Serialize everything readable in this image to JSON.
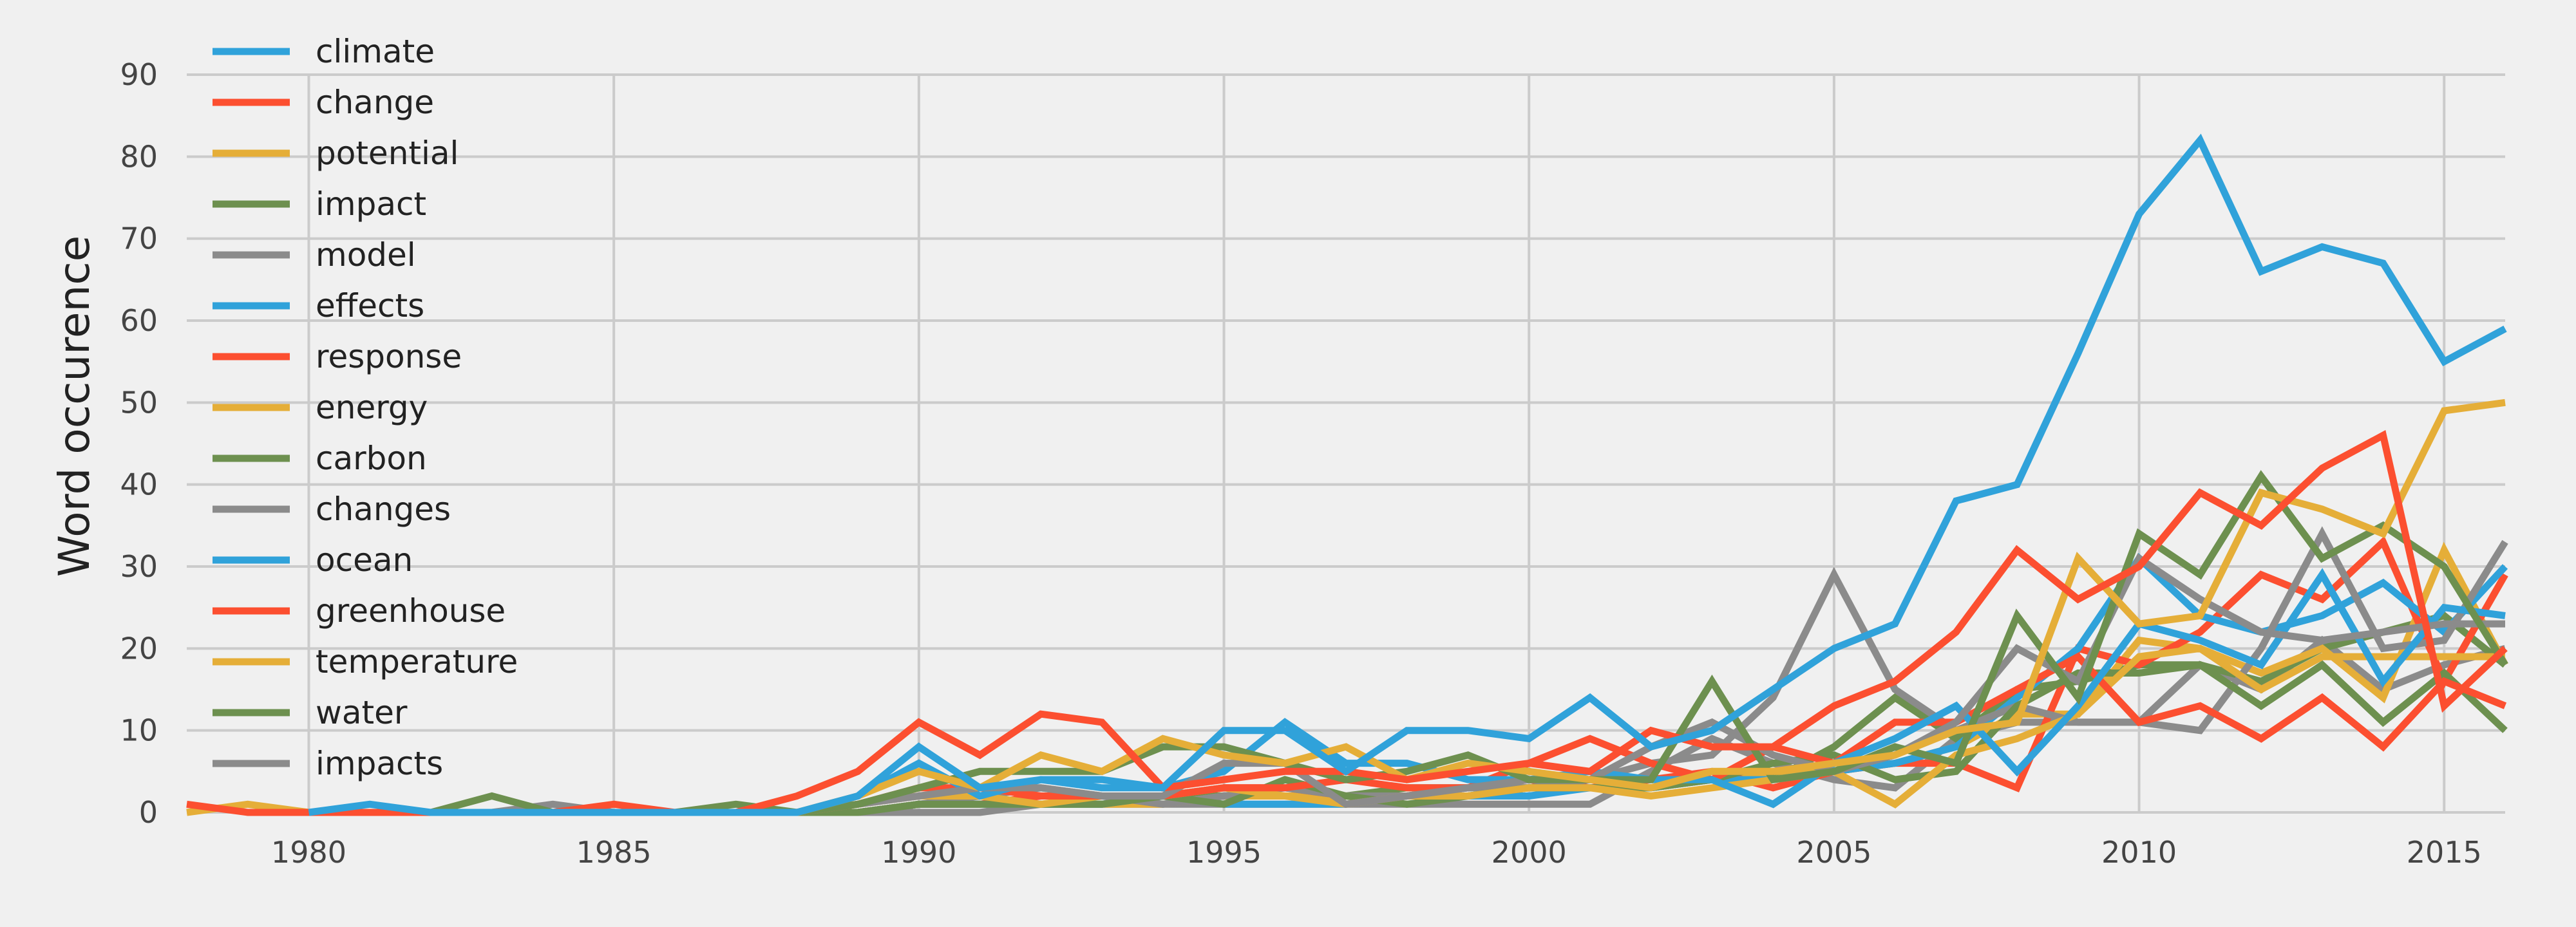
{
  "chart_data": {
    "type": "line",
    "title": "",
    "xlabel": "",
    "ylabel": "Word occurence",
    "xlim": [
      1978,
      2016
    ],
    "ylim": [
      0,
      90
    ],
    "xticks": [
      1980,
      1985,
      1990,
      1995,
      2000,
      2005,
      2010,
      2015
    ],
    "yticks": [
      0,
      10,
      20,
      30,
      40,
      50,
      60,
      70,
      80,
      90
    ],
    "grid": true,
    "legend": "top-left",
    "palette": [
      "#30a2da",
      "#fc4f30",
      "#e5ae38",
      "#6d904f",
      "#8b8b8b"
    ],
    "series": [
      {
        "name": "climate",
        "x": [
          1980,
          1981,
          1982,
          1983,
          1984,
          1985,
          1986,
          1987,
          1988,
          1989,
          1990,
          1991,
          1992,
          1993,
          1994,
          1995,
          1996,
          1997,
          1998,
          1999,
          2000,
          2001,
          2002,
          2003,
          2004,
          2005,
          2006,
          2007,
          2008,
          2009,
          2010,
          2011,
          2012,
          2013,
          2014,
          2015,
          2016
        ],
        "values": [
          0,
          1,
          0,
          0,
          0,
          0,
          0,
          0,
          0,
          2,
          8,
          3,
          4,
          4,
          3,
          10,
          10,
          5,
          10,
          10,
          9,
          14,
          8,
          10,
          15,
          20,
          23,
          38,
          40,
          56,
          73,
          82,
          66,
          69,
          67,
          55,
          59
        ]
      },
      {
        "name": "change",
        "x": [
          1978,
          1979,
          1980,
          1981,
          1982,
          1983,
          1984,
          1985,
          1986,
          1987,
          1988,
          1989,
          1990,
          1991,
          1992,
          1993,
          1994,
          1995,
          1996,
          1997,
          1998,
          1999,
          2000,
          2001,
          2002,
          2003,
          2004,
          2005,
          2006,
          2007,
          2008,
          2009,
          2010,
          2011,
          2012,
          2013,
          2014,
          2015,
          2016
        ],
        "values": [
          1,
          0,
          0,
          0,
          0,
          0,
          0,
          1,
          0,
          0,
          2,
          5,
          11,
          7,
          12,
          11,
          3,
          4,
          5,
          5,
          4,
          5,
          6,
          5,
          10,
          8,
          8,
          13,
          16,
          22,
          32,
          26,
          30,
          39,
          35,
          42,
          46,
          13,
          20
        ]
      },
      {
        "name": "potential",
        "x": [
          1978,
          1979,
          1980,
          1981,
          1982,
          1983,
          1984,
          1985,
          1986,
          1987,
          1988,
          1989,
          1990,
          1991,
          1992,
          1993,
          1994,
          1995,
          1996,
          1997,
          1998,
          1999,
          2000,
          2001,
          2002,
          2003,
          2004,
          2005,
          2006,
          2007,
          2008,
          2009,
          2010,
          2011,
          2012,
          2013,
          2014,
          2015,
          2016
        ],
        "values": [
          0,
          1,
          0,
          0,
          0,
          0,
          0,
          0,
          0,
          0,
          0,
          2,
          5,
          3,
          7,
          5,
          9,
          7,
          6,
          8,
          4,
          6,
          5,
          4,
          3,
          5,
          5,
          6,
          7,
          10,
          11,
          31,
          23,
          24,
          39,
          37,
          34,
          49,
          50
        ]
      },
      {
        "name": "impact",
        "x": [
          1980,
          1981,
          1982,
          1983,
          1984,
          1985,
          1986,
          1987,
          1988,
          1989,
          1990,
          1991,
          1992,
          1993,
          1994,
          1995,
          1996,
          1997,
          1998,
          1999,
          2000,
          2001,
          2002,
          2003,
          2004,
          2005,
          2006,
          2007,
          2008,
          2009,
          2010,
          2011,
          2012,
          2013,
          2014,
          2015,
          2016
        ],
        "values": [
          0,
          0,
          0,
          2,
          0,
          0,
          0,
          1,
          0,
          1,
          3,
          5,
          5,
          5,
          8,
          8,
          6,
          4,
          5,
          7,
          4,
          4,
          4,
          16,
          4,
          5,
          8,
          6,
          24,
          14,
          34,
          29,
          41,
          31,
          35,
          30,
          18
        ]
      },
      {
        "name": "model",
        "x": [
          1980,
          1981,
          1982,
          1983,
          1984,
          1985,
          1986,
          1987,
          1988,
          1989,
          1990,
          1991,
          1992,
          1993,
          1994,
          1995,
          1996,
          1997,
          1998,
          1999,
          2000,
          2001,
          2002,
          2003,
          2004,
          2005,
          2006,
          2007,
          2008,
          2009,
          2010,
          2011,
          2012,
          2013,
          2014,
          2015,
          2016
        ],
        "values": [
          0,
          0,
          0,
          0,
          1,
          0,
          0,
          0,
          0,
          1,
          2,
          3,
          3,
          2,
          2,
          6,
          6,
          1,
          2,
          3,
          4,
          4,
          8,
          11,
          7,
          5,
          7,
          11,
          20,
          16,
          31,
          26,
          22,
          21,
          22,
          23,
          23
        ]
      },
      {
        "name": "effects",
        "x": [
          1988,
          1989,
          1990,
          1991,
          1992,
          1993,
          1994,
          1995,
          1996,
          1997,
          1998,
          1999,
          2000,
          2001,
          2002,
          2003,
          2004,
          2005,
          2006,
          2007,
          2008,
          2009,
          2010,
          2011,
          2012,
          2013,
          2014,
          2015,
          2016
        ],
        "values": [
          0,
          2,
          6,
          2,
          4,
          3,
          3,
          5,
          11,
          6,
          6,
          4,
          4,
          5,
          4,
          4,
          1,
          6,
          9,
          13,
          5,
          13,
          23,
          21,
          18,
          29,
          16,
          25,
          24
        ]
      },
      {
        "name": "response",
        "x": [
          1988,
          1989,
          1990,
          1991,
          1992,
          1993,
          1994,
          1995,
          1996,
          1997,
          1998,
          1999,
          2000,
          2001,
          2002,
          2003,
          2004,
          2005,
          2006,
          2007,
          2008,
          2009,
          2010,
          2011,
          2012,
          2013,
          2014,
          2015,
          2016
        ],
        "values": [
          0,
          1,
          3,
          3,
          2,
          2,
          2,
          3,
          3,
          4,
          3,
          3,
          6,
          9,
          6,
          4,
          8,
          6,
          11,
          11,
          15,
          19,
          11,
          13,
          9,
          14,
          8,
          16,
          13
        ]
      },
      {
        "name": "energy",
        "x": [
          1988,
          1989,
          1990,
          1991,
          1992,
          1993,
          1994,
          1995,
          1996,
          1997,
          1998,
          1999,
          2000,
          2001,
          2002,
          2003,
          2004,
          2005,
          2006,
          2007,
          2008,
          2009,
          2010,
          2011,
          2012,
          2013,
          2014,
          2015,
          2016
        ],
        "values": [
          0,
          1,
          2,
          2,
          1,
          2,
          2,
          3,
          2,
          1,
          2,
          2,
          3,
          3,
          2,
          3,
          4,
          5,
          1,
          7,
          9,
          12,
          19,
          20,
          15,
          19,
          19,
          19,
          19
        ]
      },
      {
        "name": "carbon",
        "x": [
          1988,
          1989,
          1990,
          1991,
          1992,
          1993,
          1994,
          1995,
          1996,
          1997,
          1998,
          1999,
          2000,
          2001,
          2002,
          2003,
          2004,
          2005,
          2006,
          2007,
          2008,
          2009,
          2010,
          2011,
          2012,
          2013,
          2014,
          2015,
          2016
        ],
        "values": [
          0,
          0,
          1,
          1,
          1,
          1,
          2,
          1,
          4,
          2,
          1,
          2,
          3,
          3,
          3,
          4,
          6,
          7,
          4,
          5,
          13,
          17,
          17,
          18,
          13,
          18,
          11,
          17,
          10
        ]
      },
      {
        "name": "changes",
        "x": [
          1988,
          1989,
          1990,
          1991,
          1992,
          1993,
          1994,
          1995,
          1996,
          1997,
          1998,
          1999,
          2000,
          2001,
          2002,
          2003,
          2004,
          2005,
          2006,
          2007,
          2008,
          2009,
          2010,
          2011,
          2012,
          2013,
          2014,
          2015,
          2016
        ],
        "values": [
          0,
          0,
          1,
          2,
          3,
          2,
          1,
          2,
          3,
          2,
          2,
          3,
          3,
          4,
          6,
          7,
          14,
          29,
          15,
          10,
          13,
          11,
          11,
          10,
          20,
          34,
          20,
          21,
          33
        ]
      },
      {
        "name": "ocean",
        "x": [
          1988,
          1989,
          1990,
          1991,
          1992,
          1993,
          1994,
          1995,
          1996,
          1997,
          1998,
          1999,
          2000,
          2001,
          2002,
          2003,
          2004,
          2005,
          2006,
          2007,
          2008,
          2009,
          2010,
          2011,
          2012,
          2013,
          2014,
          2015,
          2016
        ],
        "values": [
          0,
          0,
          1,
          1,
          1,
          1,
          2,
          1,
          1,
          1,
          2,
          2,
          2,
          3,
          3,
          4,
          4,
          5,
          6,
          8,
          14,
          20,
          31,
          24,
          22,
          24,
          28,
          22,
          30
        ]
      },
      {
        "name": "greenhouse",
        "x": [
          1988,
          1989,
          1990,
          1991,
          1992,
          1993,
          1994,
          1995,
          1996,
          1997,
          1998,
          1999,
          2000,
          2001,
          2002,
          2003,
          2004,
          2005,
          2006,
          2007,
          2008,
          2009,
          2010,
          2011,
          2012,
          2013,
          2014,
          2015,
          2016
        ],
        "values": [
          0,
          0,
          1,
          1,
          2,
          2,
          2,
          3,
          3,
          2,
          2,
          3,
          4,
          3,
          4,
          5,
          3,
          5,
          6,
          6,
          3,
          20,
          18,
          22,
          29,
          26,
          33,
          16,
          29
        ]
      },
      {
        "name": "temperature",
        "x": [
          1988,
          1989,
          1990,
          1991,
          1992,
          1993,
          1994,
          1995,
          1996,
          1997,
          1998,
          1999,
          2000,
          2001,
          2002,
          2003,
          2004,
          2005,
          2006,
          2007,
          2008,
          2009,
          2010,
          2011,
          2012,
          2013,
          2014,
          2015,
          2016
        ],
        "values": [
          0,
          0,
          1,
          1,
          1,
          1,
          1,
          2,
          2,
          2,
          2,
          2,
          3,
          3,
          3,
          4,
          5,
          5,
          6,
          8,
          12,
          12,
          21,
          20,
          17,
          20,
          14,
          32,
          18
        ]
      },
      {
        "name": "water",
        "x": [
          1988,
          1989,
          1990,
          1991,
          1992,
          1993,
          1994,
          1995,
          1996,
          1997,
          1998,
          1999,
          2000,
          2001,
          2002,
          2003,
          2004,
          2005,
          2006,
          2007,
          2008,
          2009,
          2010,
          2011,
          2012,
          2013,
          2014,
          2015,
          2016
        ],
        "values": [
          0,
          0,
          1,
          1,
          1,
          1,
          2,
          2,
          2,
          2,
          3,
          3,
          3,
          3,
          3,
          4,
          4,
          8,
          14,
          9,
          15,
          16,
          18,
          18,
          16,
          20,
          22,
          24,
          18
        ]
      },
      {
        "name": "impacts",
        "x": [
          1988,
          1989,
          1990,
          1991,
          1992,
          1993,
          1994,
          1995,
          1996,
          1997,
          1998,
          1999,
          2000,
          2001,
          2002,
          2003,
          2004,
          2005,
          2006,
          2007,
          2008,
          2009,
          2010,
          2011,
          2012,
          2013,
          2014,
          2015,
          2016
        ],
        "values": [
          0,
          0,
          0,
          0,
          1,
          1,
          1,
          1,
          1,
          1,
          1,
          1,
          1,
          1,
          5,
          9,
          6,
          4,
          3,
          9,
          11,
          11,
          11,
          18,
          15,
          21,
          15,
          18,
          20
        ]
      }
    ]
  }
}
